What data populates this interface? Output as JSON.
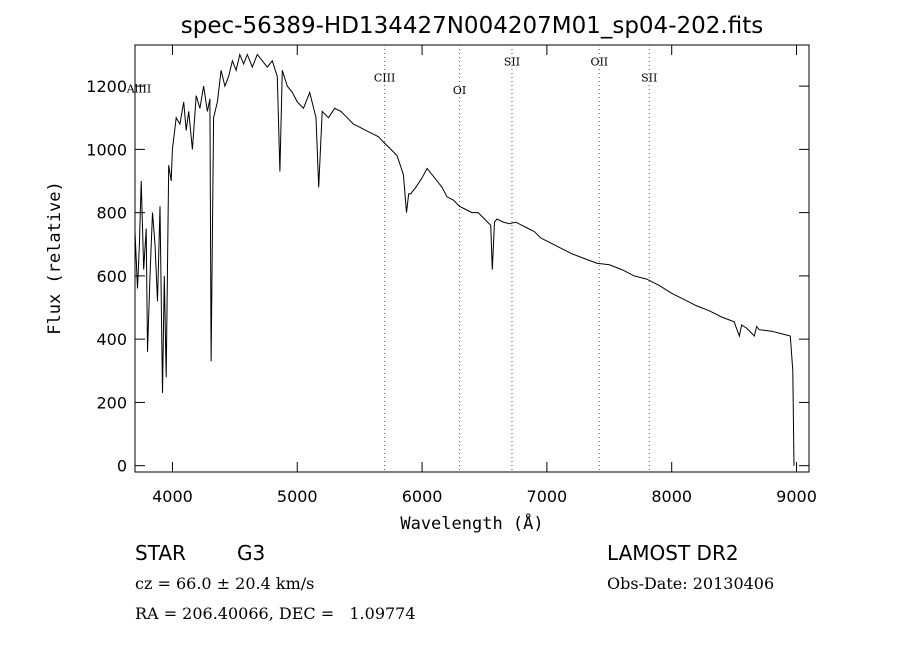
{
  "chart_data": {
    "type": "line",
    "title": "spec-56389-HD134427N004207M01_sp04-202.fits",
    "xlabel": "Wavelength (Å)",
    "ylabel": "Flux (relative)",
    "xlim": [
      3700,
      9100
    ],
    "ylim": [
      -20,
      1330
    ],
    "xticks": [
      4000,
      5000,
      6000,
      7000,
      8000,
      9000
    ],
    "yticks": [
      0,
      200,
      400,
      600,
      800,
      1000,
      1200
    ],
    "grid": false,
    "series": [
      {
        "x": [
          3700,
          3720,
          3735,
          3750,
          3770,
          3790,
          3800,
          3820,
          3840,
          3860,
          3880,
          3900,
          3920,
          3935,
          3950,
          3970,
          3990,
          4000,
          4030,
          4060,
          4090,
          4110,
          4130,
          4160,
          4190,
          4220,
          4250,
          4280,
          4300,
          4310,
          4330,
          4360,
          4390,
          4420,
          4450,
          4480,
          4510,
          4540,
          4570,
          4600,
          4640,
          4680,
          4720,
          4760,
          4800,
          4840,
          4861,
          4880,
          4920,
          4960,
          5000,
          5050,
          5100,
          5150,
          5172,
          5200,
          5250,
          5300,
          5350,
          5400,
          5450,
          5500,
          5550,
          5600,
          5650,
          5700,
          5750,
          5800,
          5850,
          5875,
          5893,
          5910,
          5950,
          6000,
          6040,
          6080,
          6120,
          6160,
          6200,
          6250,
          6300,
          6350,
          6400,
          6450,
          6500,
          6550,
          6563,
          6580,
          6600,
          6650,
          6700,
          6750,
          6800,
          6850,
          6900,
          6950,
          7000,
          7100,
          7200,
          7300,
          7400,
          7500,
          7600,
          7700,
          7800,
          7900,
          8000,
          8100,
          8200,
          8300,
          8400,
          8500,
          8542,
          8560,
          8600,
          8662,
          8680,
          8700,
          8800,
          8900,
          8950,
          8970,
          8980
        ],
        "values": [
          740,
          560,
          700,
          900,
          620,
          750,
          360,
          600,
          800,
          700,
          520,
          820,
          230,
          600,
          280,
          950,
          900,
          1000,
          1100,
          1080,
          1150,
          1060,
          1120,
          1000,
          1170,
          1130,
          1200,
          1120,
          1160,
          330,
          1100,
          1150,
          1250,
          1200,
          1230,
          1280,
          1250,
          1300,
          1270,
          1300,
          1260,
          1300,
          1280,
          1260,
          1280,
          1230,
          930,
          1250,
          1200,
          1180,
          1150,
          1130,
          1180,
          1100,
          880,
          1120,
          1100,
          1130,
          1120,
          1100,
          1080,
          1070,
          1060,
          1050,
          1040,
          1020,
          1000,
          980,
          920,
          800,
          860,
          860,
          880,
          910,
          940,
          920,
          900,
          880,
          850,
          840,
          820,
          810,
          800,
          800,
          780,
          760,
          620,
          770,
          780,
          770,
          765,
          770,
          760,
          750,
          740,
          720,
          710,
          690,
          670,
          655,
          640,
          635,
          620,
          600,
          590,
          570,
          545,
          525,
          505,
          490,
          470,
          455,
          410,
          445,
          435,
          410,
          440,
          430,
          425,
          415,
          410,
          300,
          0
        ]
      }
    ],
    "annotations": [
      {
        "label": "AlIII",
        "x": 3730,
        "y": 1180,
        "line": false
      },
      {
        "label": "CIII",
        "x": 5700,
        "y": 1215,
        "line": true
      },
      {
        "label": "OI",
        "x": 6300,
        "y": 1175,
        "line": true
      },
      {
        "label": "SII",
        "x": 6720,
        "y": 1265,
        "line": true
      },
      {
        "label": "OII",
        "x": 7420,
        "y": 1265,
        "line": true
      },
      {
        "label": "SII",
        "x": 7820,
        "y": 1215,
        "line": true
      }
    ],
    "annotation_line_color": "#cc2222",
    "line_color": "#000000"
  },
  "info": {
    "obj_class": "STAR",
    "subclass": "G3",
    "survey": "LAMOST DR2",
    "cz": "cz = 66.0 ± 20.4 km/s",
    "obs_date": "Obs-Date: 20130406",
    "radec": "RA = 206.40066, DEC =   1.09774"
  }
}
